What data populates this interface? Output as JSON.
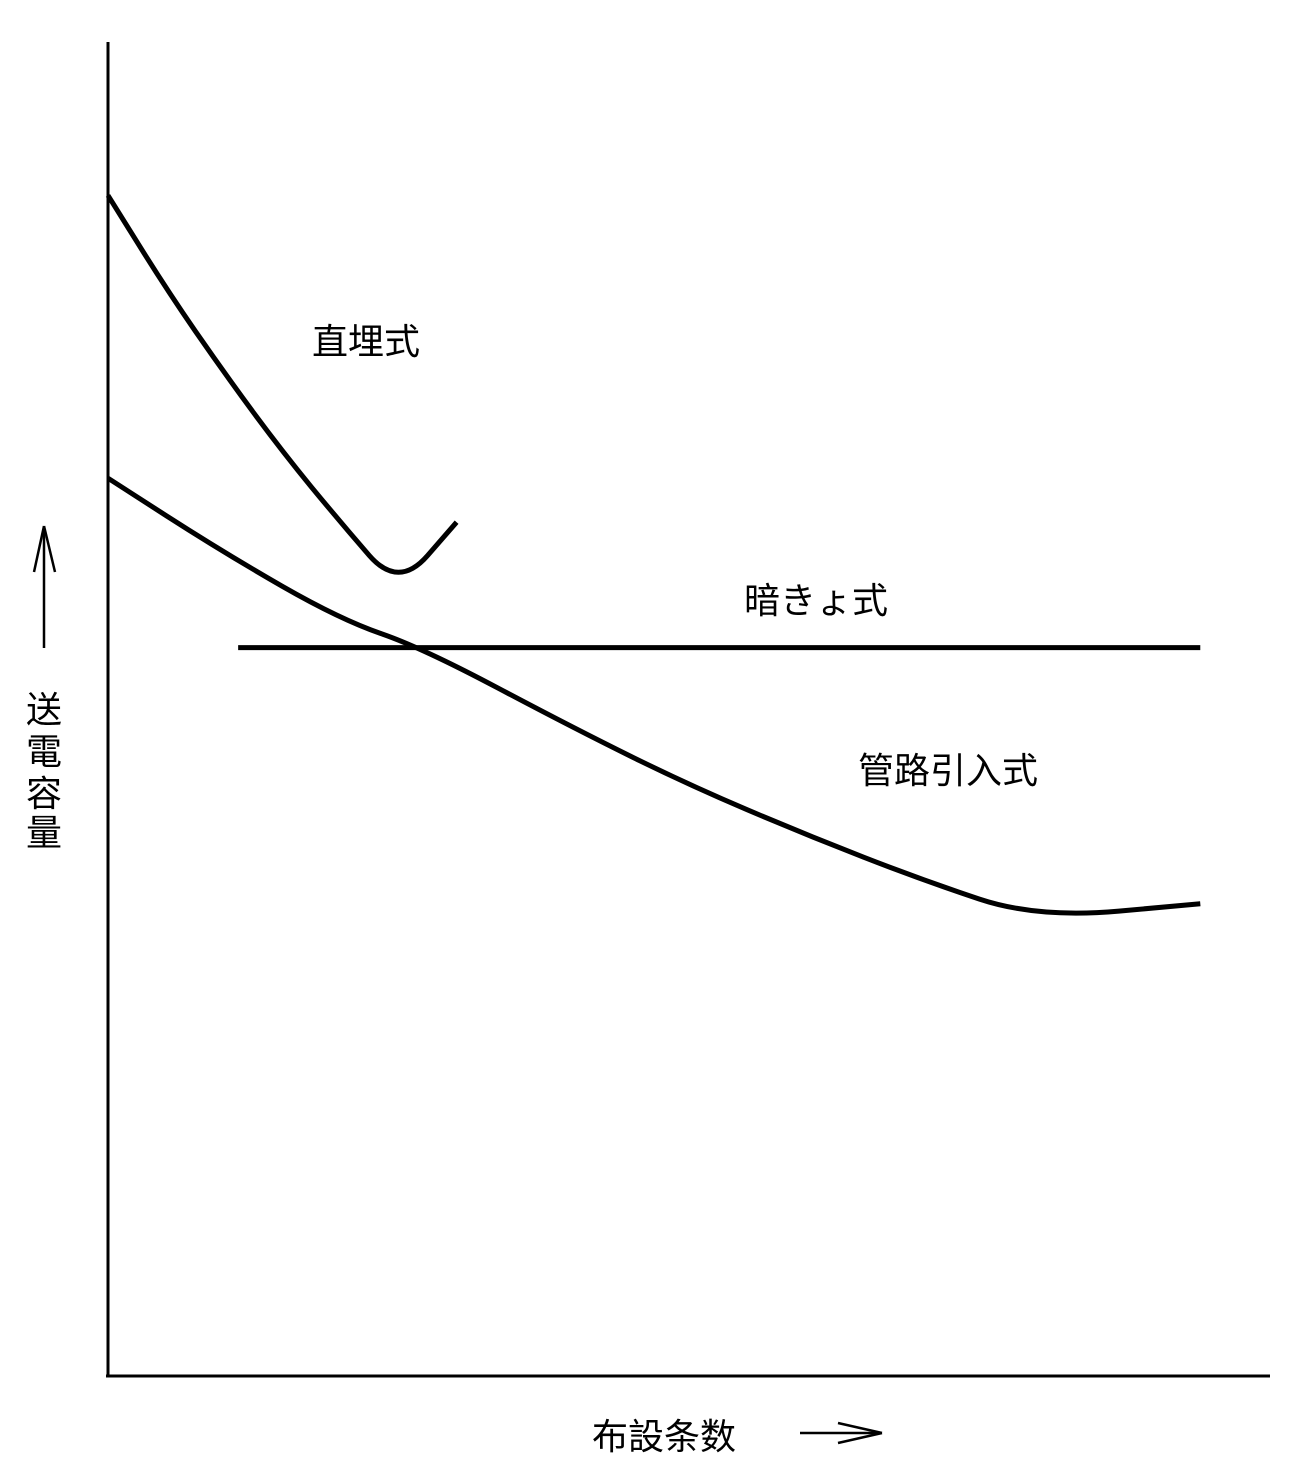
{
  "chart_data": {
    "type": "line",
    "title": "",
    "xlabel": "布設条数",
    "ylabel": "送電容量",
    "x_unit_arrow": "→",
    "y_unit_arrow": "↑",
    "xlim": [
      0,
      100
    ],
    "ylim": [
      0,
      100
    ],
    "grid": false,
    "legend": "none",
    "ticks": "none",
    "series": [
      {
        "name": "直埋式",
        "x": [
          0,
          5,
          10,
          15,
          20,
          25,
          30
        ],
        "y": [
          88.5,
          81.5,
          75.2,
          69.3,
          64.0,
          59.0,
          64.0
        ]
      },
      {
        "name": "暗きょ式",
        "x": [
          11.2,
          94.0
        ],
        "y": [
          54.6,
          54.6
        ]
      },
      {
        "name": "管路引入式",
        "x": [
          0,
          10,
          20,
          27,
          40,
          50,
          60,
          70,
          80,
          94.0
        ],
        "y": [
          67.3,
          61.7,
          56.7,
          54.6,
          48.6,
          44.3,
          40.6,
          37.2,
          34.3,
          35.4
        ]
      }
    ]
  }
}
